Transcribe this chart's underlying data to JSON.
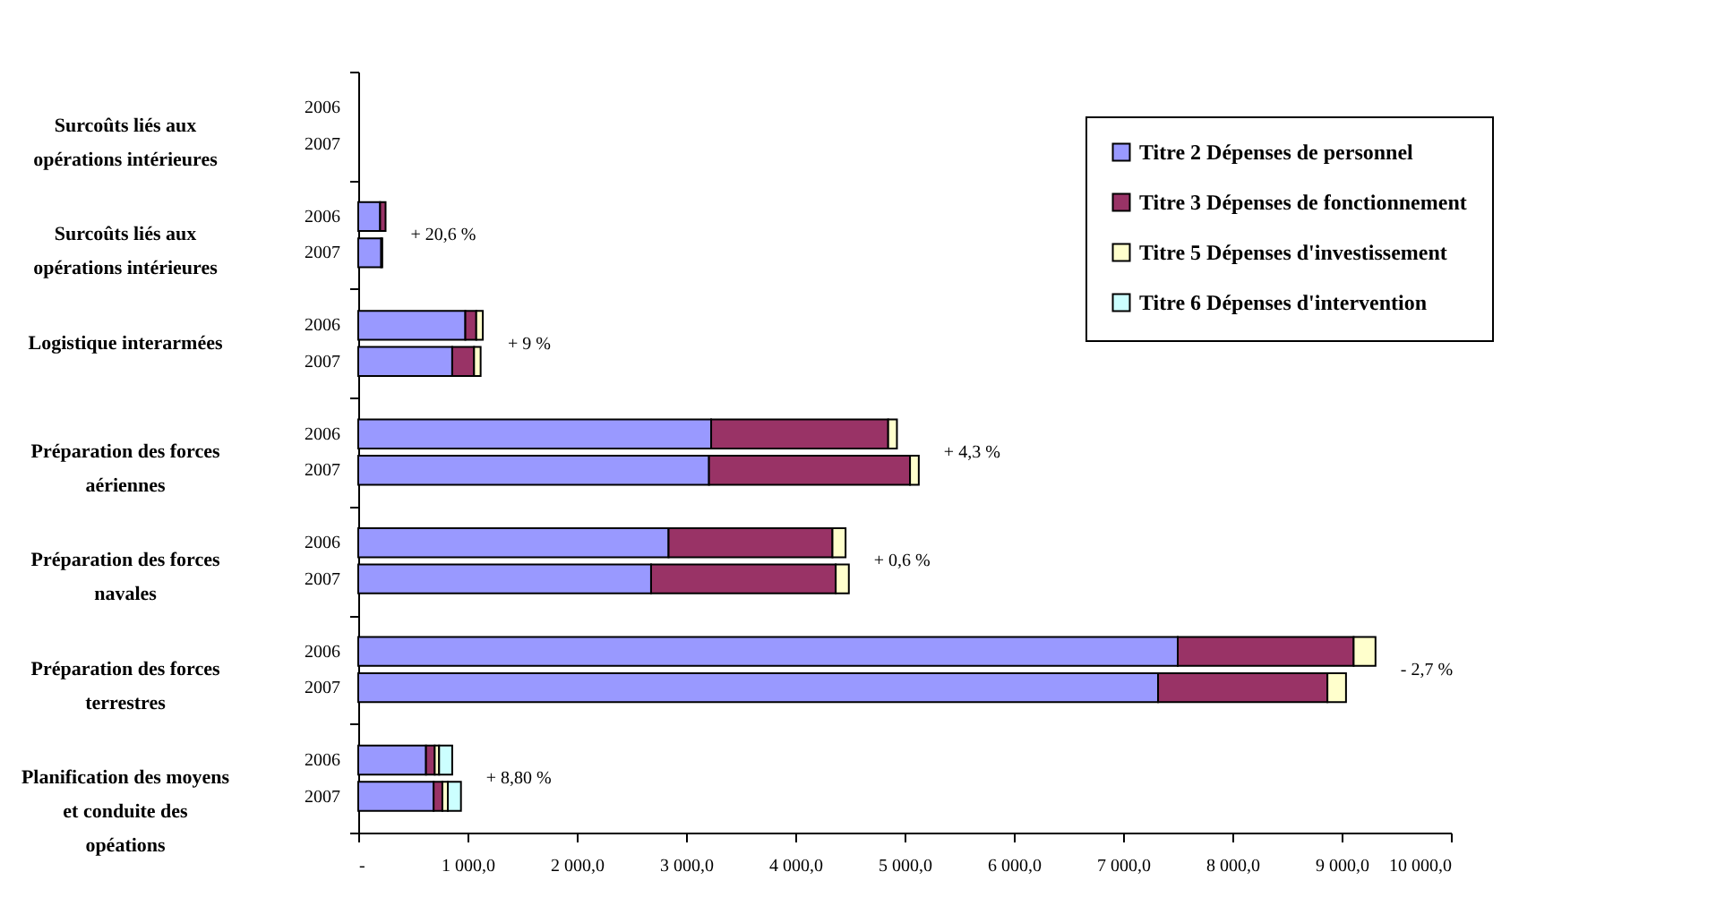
{
  "chart_data": {
    "type": "bar",
    "orientation": "horizontal",
    "stacked": true,
    "categories": [
      "2006",
      "2007",
      "2006",
      "2007",
      "2006",
      "2007",
      "2006",
      "2007",
      "2006",
      "2007",
      "2006",
      "2007",
      "2006",
      "2007"
    ],
    "series": [
      {
        "name": "Titre 2 Dépenses de personnel",
        "color": "#9999ff",
        "values": [
          null,
          null,
          200,
          210,
          980,
          860,
          3230,
          3210,
          2840,
          2680,
          7500,
          7320,
          620,
          690
        ]
      },
      {
        "name": "Titre 3 Dépenses de fonctionnement",
        "color": "#993366",
        "values": [
          null,
          null,
          50,
          10,
          100,
          200,
          1620,
          1840,
          1500,
          1690,
          1610,
          1550,
          80,
          80
        ]
      },
      {
        "name": "Titre 5 Dépenses d'investissement",
        "color": "#ffffcc",
        "values": [
          null,
          null,
          null,
          null,
          60,
          60,
          80,
          80,
          120,
          120,
          200,
          170,
          40,
          50
        ]
      },
      {
        "name": "Titre 6 Dépenses d'intervention",
        "color": "#ccffff",
        "values": [
          null,
          null,
          null,
          null,
          null,
          null,
          null,
          null,
          null,
          null,
          null,
          null,
          120,
          120
        ]
      }
    ],
    "xlim": [
      0,
      10000
    ],
    "xticks": [
      {
        "value": 0,
        "label": "-"
      },
      {
        "value": 1000,
        "label": "1 000,0"
      },
      {
        "value": 2000,
        "label": "2 000,0"
      },
      {
        "value": 3000,
        "label": "3 000,0"
      },
      {
        "value": 4000,
        "label": "4 000,0"
      },
      {
        "value": 5000,
        "label": "5 000,0"
      },
      {
        "value": 6000,
        "label": "6 000,0"
      },
      {
        "value": 7000,
        "label": "7 000,0"
      },
      {
        "value": 8000,
        "label": "8 000,0"
      },
      {
        "value": 9000,
        "label": "9 000,0"
      },
      {
        "value": 10000,
        "label": "10 000,0"
      }
    ],
    "annotations": [
      "Surcoûts liés aux opérations intérieures",
      "Surcoûts liés aux opérations intérieures",
      "Logistique interarmées",
      "Préparation des forces aériennes",
      "Préparation des forces navales",
      "Préparation des forces terrestres",
      "Planification des moyens et conduite des opéations",
      "+ 20,6 %",
      "+ 9 %",
      "+ 4,3 %",
      "+ 0,6 %",
      "- 2,7 %",
      "+ 8,80 %"
    ],
    "legend": "top right",
    "grid": false
  }
}
